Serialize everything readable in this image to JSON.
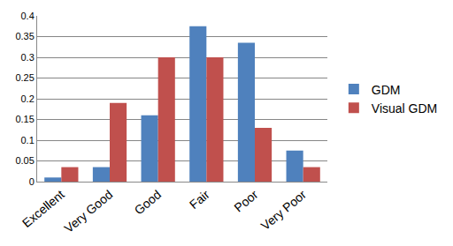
{
  "chart_data": {
    "type": "bar",
    "categories": [
      "Excellent",
      "Very Good",
      "Good",
      "Fair",
      "Poor",
      "Very Poor"
    ],
    "series": [
      {
        "name": "GDM",
        "color": "#4f81bd",
        "values": [
          0.01,
          0.035,
          0.16,
          0.375,
          0.335,
          0.075
        ]
      },
      {
        "name": "Visual GDM",
        "color": "#c0504d",
        "values": [
          0.035,
          0.19,
          0.3,
          0.3,
          0.13,
          0.035
        ]
      }
    ],
    "ylim": [
      0,
      0.4
    ],
    "yticks": [
      0,
      0.05,
      0.1,
      0.15,
      0.2,
      0.25,
      0.3,
      0.35,
      0.4
    ],
    "grid": true,
    "legend": "right"
  }
}
